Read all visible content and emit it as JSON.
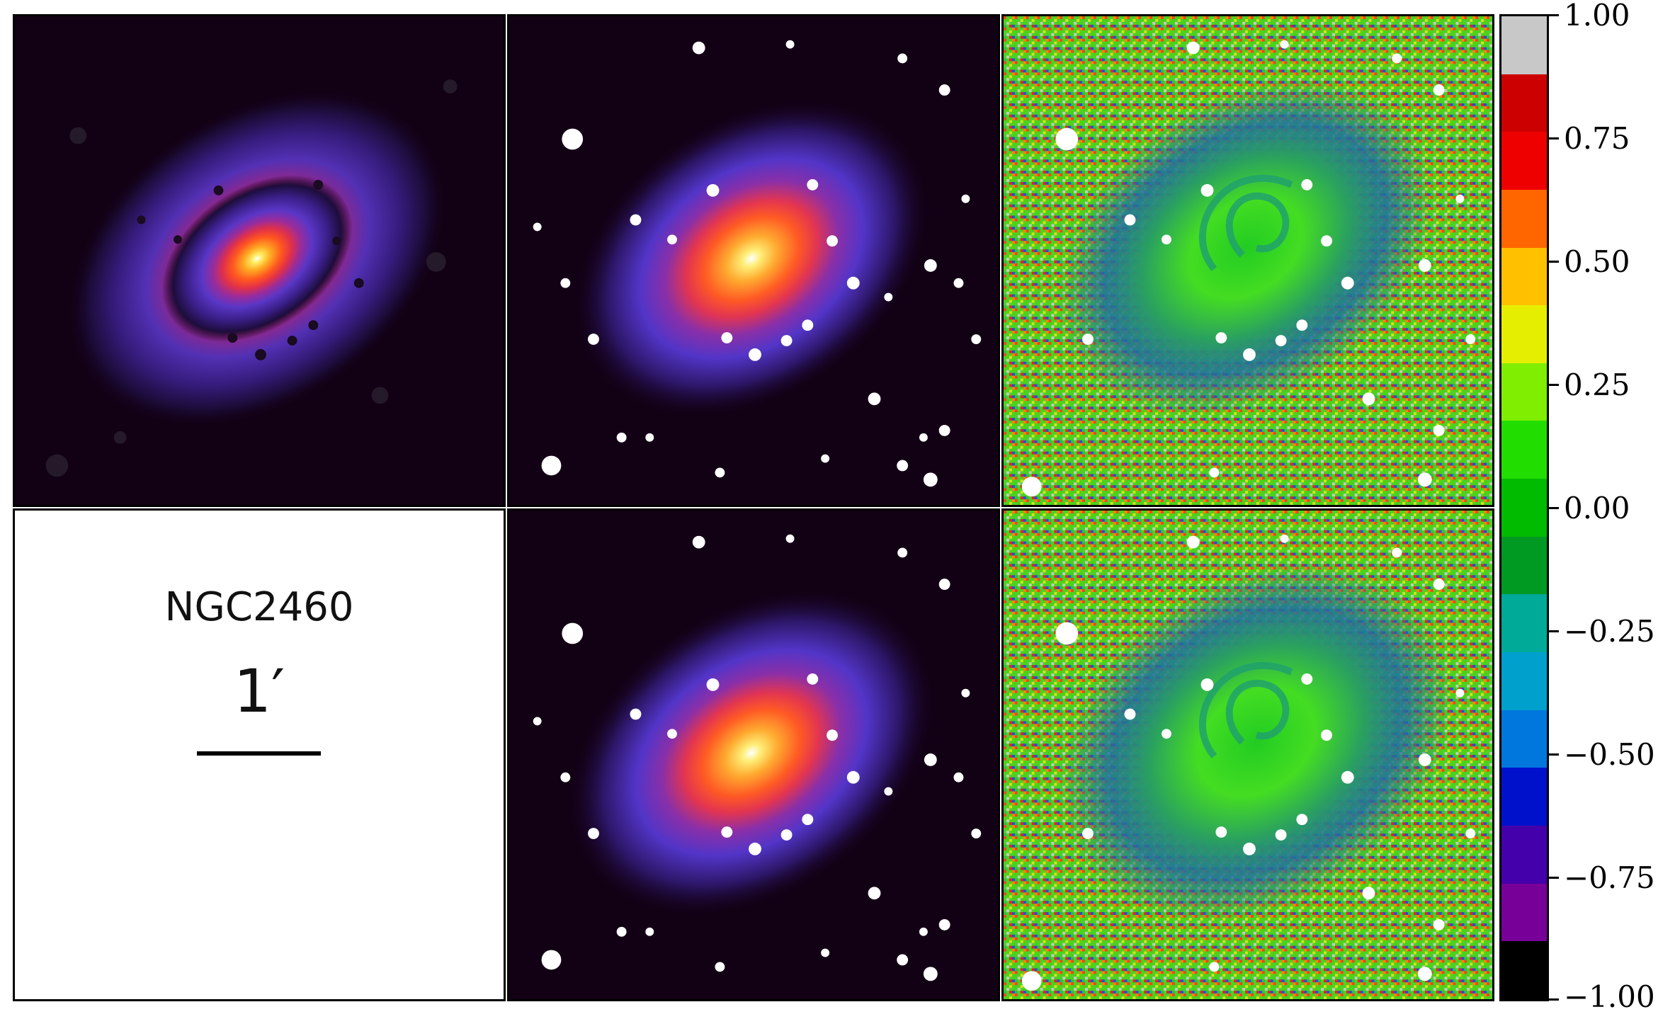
{
  "panels": {
    "info": {
      "galaxy_name": "NGC2460",
      "scale_label": "1′"
    }
  },
  "colorbar": {
    "tick_labels": [
      "1.00",
      "0.75",
      "0.50",
      "0.25",
      "0.00",
      "−0.25",
      "−0.50",
      "−0.75",
      "−1.00"
    ],
    "range": [
      -1.0,
      1.0
    ],
    "colors_top_to_bottom": [
      "#c8c8c8",
      "#cc0000",
      "#ee0000",
      "#ff6600",
      "#ffc000",
      "#e6ee00",
      "#80ee00",
      "#22dd00",
      "#00bb00",
      "#009922",
      "#00aa99",
      "#00a0cc",
      "#0077dd",
      "#0011cc",
      "#4400aa",
      "#770099",
      "#000000"
    ]
  }
}
